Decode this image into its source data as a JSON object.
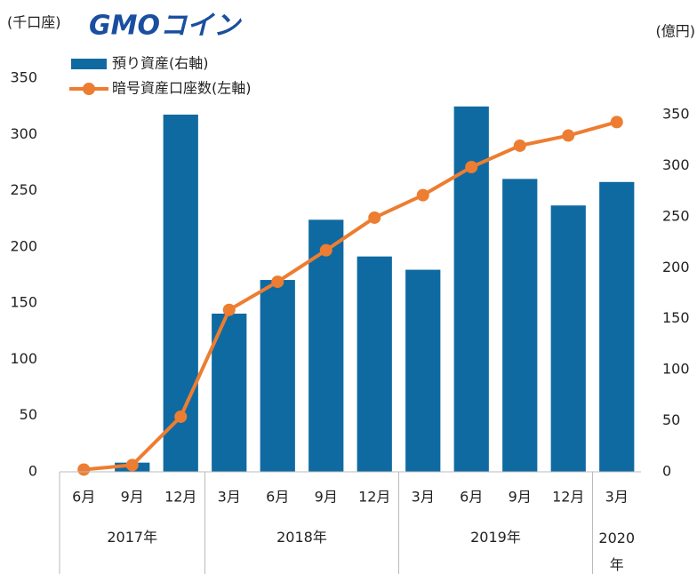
{
  "chart_data": {
    "type": "bar_line",
    "logo": "GMOコイン",
    "y_label": "(千口座)",
    "y2_label": "(億円)",
    "categories": [
      "6月",
      "9月",
      "12月",
      "3月",
      "6月",
      "9月",
      "12月",
      "3月",
      "6月",
      "9月",
      "12月",
      "3月"
    ],
    "groups": [
      {
        "label": "2017年",
        "count": 3
      },
      {
        "label": "2018年",
        "count": 4
      },
      {
        "label": "2019年",
        "count": 4
      },
      {
        "label": "2020年",
        "count": 1
      }
    ],
    "series": [
      {
        "name": "預り資産(右軸)",
        "type": "bar",
        "axis": "y2",
        "color": "#0f6aa2",
        "values": [
          0,
          9,
          350,
          155,
          188,
          247,
          211,
          198,
          358,
          287,
          261,
          284
        ]
      },
      {
        "name": "暗号資産口座数(左軸)",
        "type": "line",
        "axis": "y",
        "color": "#ed7d31",
        "values": [
          2,
          6,
          49,
          144,
          169,
          197,
          226,
          246,
          271,
          290,
          299,
          311
        ]
      }
    ],
    "ylim": [
      0,
      350
    ],
    "yticks": [
      0,
      50,
      100,
      150,
      200,
      250,
      300,
      350
    ],
    "y2lim": [
      0,
      350
    ],
    "y2ticks": [
      0,
      50,
      100,
      150,
      200,
      250,
      300,
      350
    ]
  }
}
